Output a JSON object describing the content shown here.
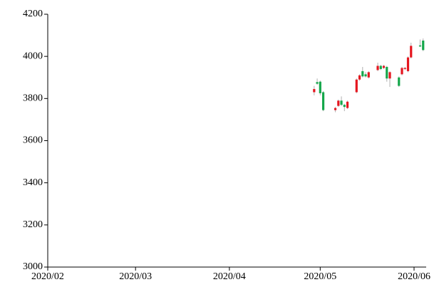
{
  "chart_data": {
    "type": "candlestick",
    "x": [
      "2020-04-29",
      "2020-04-30",
      "2020-05-01",
      "2020-05-02",
      "2020-05-06",
      "2020-05-07",
      "2020-05-08",
      "2020-05-09",
      "2020-05-10",
      "2020-05-13",
      "2020-05-14",
      "2020-05-15",
      "2020-05-16",
      "2020-05-17",
      "2020-05-20",
      "2020-05-21",
      "2020-05-22",
      "2020-05-23",
      "2020-05-24",
      "2020-05-27",
      "2020-05-28",
      "2020-05-29",
      "2020-05-30",
      "2020-05-31",
      "2020-06-03",
      "2020-06-04"
    ],
    "open": [
      3830,
      3878,
      3880,
      3830,
      3745,
      3765,
      3790,
      3770,
      3755,
      3830,
      3890,
      3930,
      3915,
      3900,
      3935,
      3955,
      3945,
      3950,
      3895,
      3900,
      3915,
      3940,
      3930,
      3995,
      4052,
      4075
    ],
    "high": [
      3860,
      3895,
      3885,
      3835,
      3760,
      3795,
      3810,
      3775,
      3790,
      3895,
      3915,
      3950,
      3925,
      3930,
      3970,
      3960,
      3960,
      3955,
      3930,
      3905,
      3950,
      3950,
      4000,
      4065,
      4080,
      4085
    ],
    "low": [
      3815,
      3865,
      3815,
      3740,
      3735,
      3760,
      3765,
      3740,
      3750,
      3825,
      3885,
      3900,
      3900,
      3895,
      3930,
      3935,
      3940,
      3880,
      3855,
      3855,
      3910,
      3935,
      3925,
      3990,
      4045,
      4025
    ],
    "close": [
      3845,
      3870,
      3825,
      3745,
      3755,
      3790,
      3770,
      3760,
      3785,
      3890,
      3910,
      3905,
      3905,
      3925,
      3955,
      3940,
      3955,
      3895,
      3925,
      3860,
      3945,
      3945,
      3995,
      4050,
      4050,
      4030
    ],
    "up_color": "#e5161f",
    "down_color": "#15a74b",
    "wick_color": "#b0b0b0",
    "xlim": [
      "2020-02-01",
      "2020-06-05"
    ],
    "xticks": [
      {
        "value": "2020-02-01",
        "label": "2020/02"
      },
      {
        "value": "2020-03-01",
        "label": "2020/03"
      },
      {
        "value": "2020-04-01",
        "label": "2020/04"
      },
      {
        "value": "2020-05-01",
        "label": "2020/05"
      },
      {
        "value": "2020-06-01",
        "label": "2020/06"
      }
    ],
    "ylim": [
      3000,
      4200
    ],
    "yticks": [
      3000,
      3200,
      3400,
      3600,
      3800,
      4000,
      4200
    ],
    "grid": false
  }
}
